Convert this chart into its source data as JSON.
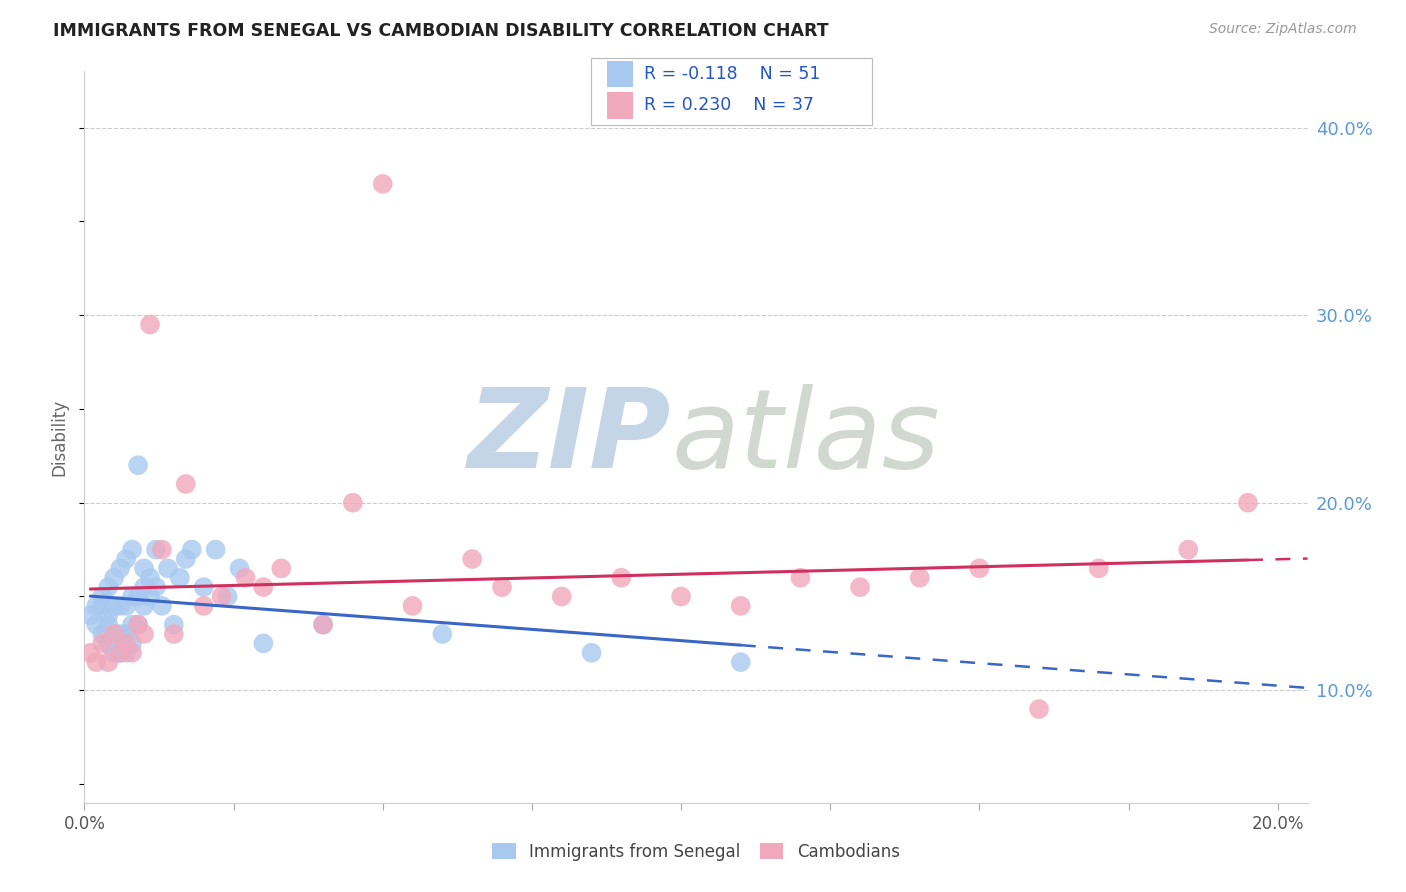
{
  "title": "IMMIGRANTS FROM SENEGAL VS CAMBODIAN DISABILITY CORRELATION CHART",
  "source": "Source: ZipAtlas.com",
  "ylabel": "Disability",
  "xlim": [
    0.0,
    0.205
  ],
  "ylim": [
    0.04,
    0.43
  ],
  "xtick_positions": [
    0.0,
    0.025,
    0.05,
    0.075,
    0.1,
    0.125,
    0.15,
    0.175,
    0.2
  ],
  "xticklabels_show": {
    "0.0": "0.0%",
    "0.20": "20.0%"
  },
  "ytick_positions": [
    0.1,
    0.2,
    0.3,
    0.4
  ],
  "ytick_labels": [
    "10.0%",
    "20.0%",
    "30.0%",
    "40.0%"
  ],
  "legend_r1": "R = -0.118",
  "legend_n1": "N = 51",
  "legend_r2": "R = 0.230",
  "legend_n2": "N = 37",
  "color_blue": "#A8C8F0",
  "color_pink": "#F0A8BC",
  "color_blue_line": "#3A66C8",
  "color_pink_line": "#D03060",
  "background_color": "#FFFFFF",
  "grid_color": "#CCCCCC",
  "senegal_x": [
    0.001,
    0.002,
    0.002,
    0.003,
    0.003,
    0.003,
    0.004,
    0.004,
    0.004,
    0.004,
    0.005,
    0.005,
    0.005,
    0.005,
    0.006,
    0.006,
    0.006,
    0.006,
    0.007,
    0.007,
    0.007,
    0.007,
    0.008,
    0.008,
    0.008,
    0.008,
    0.009,
    0.009,
    0.009,
    0.01,
    0.01,
    0.01,
    0.011,
    0.011,
    0.012,
    0.012,
    0.013,
    0.014,
    0.015,
    0.016,
    0.017,
    0.018,
    0.02,
    0.022,
    0.024,
    0.026,
    0.03,
    0.04,
    0.06,
    0.085,
    0.11
  ],
  "senegal_y": [
    0.14,
    0.135,
    0.145,
    0.13,
    0.145,
    0.15,
    0.125,
    0.135,
    0.14,
    0.155,
    0.12,
    0.13,
    0.145,
    0.16,
    0.12,
    0.13,
    0.145,
    0.165,
    0.12,
    0.13,
    0.145,
    0.17,
    0.125,
    0.135,
    0.15,
    0.175,
    0.135,
    0.15,
    0.22,
    0.145,
    0.155,
    0.165,
    0.15,
    0.16,
    0.155,
    0.175,
    0.145,
    0.165,
    0.135,
    0.16,
    0.17,
    0.175,
    0.155,
    0.175,
    0.15,
    0.165,
    0.125,
    0.135,
    0.13,
    0.12,
    0.115
  ],
  "cambodian_x": [
    0.001,
    0.002,
    0.003,
    0.004,
    0.005,
    0.006,
    0.007,
    0.008,
    0.009,
    0.01,
    0.011,
    0.013,
    0.015,
    0.017,
    0.02,
    0.023,
    0.027,
    0.03,
    0.033,
    0.04,
    0.045,
    0.05,
    0.055,
    0.065,
    0.07,
    0.08,
    0.09,
    0.1,
    0.11,
    0.12,
    0.13,
    0.14,
    0.15,
    0.16,
    0.17,
    0.185,
    0.195
  ],
  "cambodian_y": [
    0.12,
    0.115,
    0.125,
    0.115,
    0.13,
    0.12,
    0.125,
    0.12,
    0.135,
    0.13,
    0.295,
    0.175,
    0.13,
    0.21,
    0.145,
    0.15,
    0.16,
    0.155,
    0.165,
    0.135,
    0.2,
    0.37,
    0.145,
    0.17,
    0.155,
    0.15,
    0.16,
    0.15,
    0.145,
    0.16,
    0.155,
    0.16,
    0.165,
    0.09,
    0.165,
    0.175,
    0.2
  ]
}
